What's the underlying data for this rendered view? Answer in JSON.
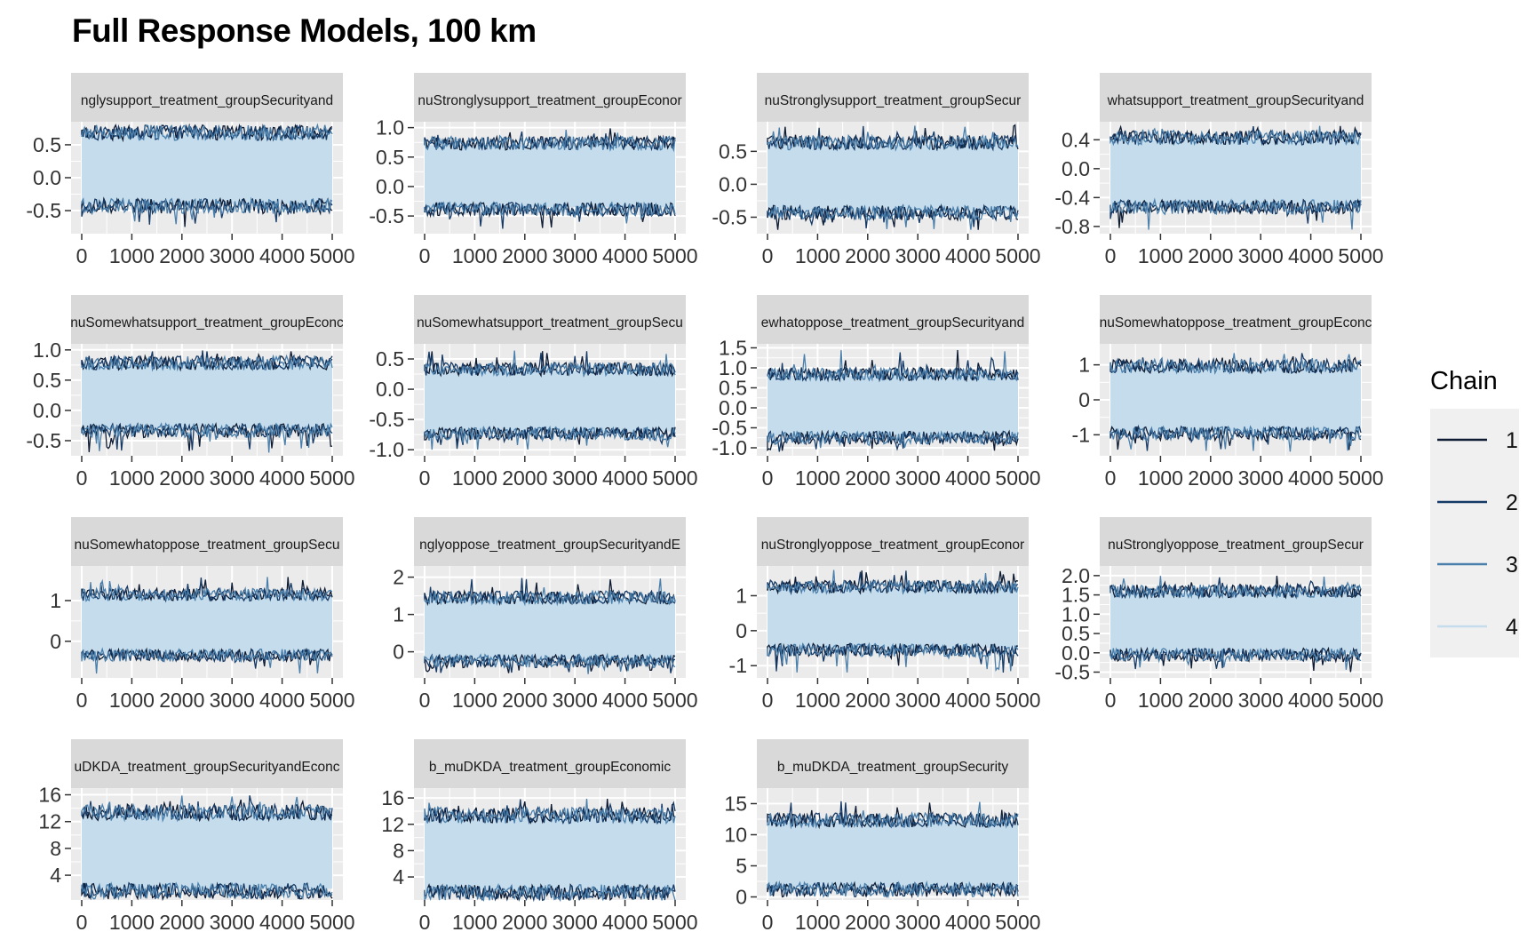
{
  "title": "Full Response Models, 100 km",
  "legend": {
    "title": "Chain",
    "entries": [
      {
        "label": "1",
        "color": "#0d1b33"
      },
      {
        "label": "2",
        "color": "#163a66"
      },
      {
        "label": "3",
        "color": "#4a7fab"
      },
      {
        "label": "4",
        "color": "#c5dcec"
      }
    ]
  },
  "colors": {
    "panel_bg": "#ebebeb",
    "strip_bg": "#d9d9d9",
    "grid": "#ffffff",
    "band_fill": "#c5dcec"
  },
  "chart_data": [
    {
      "type": "line",
      "strip": "nglysupport_treatment_groupSecurityand",
      "x_ticks": [
        "0",
        "1000",
        "2000",
        "3000",
        "4000",
        "5000"
      ],
      "xlim": [
        0,
        5000
      ],
      "y_ticks": [
        "0.5",
        "0.0",
        "-0.5"
      ],
      "y_tick_values": [
        0.5,
        0,
        -0.5
      ],
      "ylim": [
        -0.85,
        0.85
      ],
      "band": [
        -0.4,
        0.65
      ],
      "series_extremes": [
        -0.75,
        0.8
      ]
    },
    {
      "type": "line",
      "strip": "nuStronglysupport_treatment_groupEconor",
      "x_ticks": [
        "0",
        "1000",
        "2000",
        "3000",
        "4000",
        "5000"
      ],
      "xlim": [
        0,
        5000
      ],
      "y_ticks": [
        "1.0",
        "0.5",
        "0.0",
        "-0.5"
      ],
      "y_tick_values": [
        1,
        0.5,
        0,
        -0.5
      ],
      "ylim": [
        -0.8,
        1.1
      ],
      "band": [
        -0.35,
        0.7
      ],
      "series_extremes": [
        -0.75,
        1.0
      ]
    },
    {
      "type": "line",
      "strip": "nuStronglysupport_treatment_groupSecur",
      "x_ticks": [
        "0",
        "1000",
        "2000",
        "3000",
        "4000",
        "5000"
      ],
      "xlim": [
        0,
        5000
      ],
      "y_ticks": [
        "0.5",
        "0.0",
        "-0.5"
      ],
      "y_tick_values": [
        0.5,
        0,
        -0.5
      ],
      "ylim": [
        -0.75,
        0.95
      ],
      "band": [
        -0.4,
        0.6
      ],
      "series_extremes": [
        -0.7,
        0.9
      ]
    },
    {
      "type": "line",
      "strip": "whatsupport_treatment_groupSecurityand",
      "x_ticks": [
        "0",
        "1000",
        "2000",
        "3000",
        "4000",
        "5000"
      ],
      "xlim": [
        0,
        5000
      ],
      "y_ticks": [
        "0.4",
        "0.0",
        "-0.4",
        "-0.8"
      ],
      "y_tick_values": [
        0.4,
        0,
        -0.4,
        -0.8
      ],
      "ylim": [
        -0.9,
        0.65
      ],
      "band": [
        -0.5,
        0.4
      ],
      "series_extremes": [
        -0.85,
        0.6
      ]
    },
    {
      "type": "line",
      "strip": "nuSomewhatsupport_treatment_groupEconc",
      "x_ticks": [
        "0",
        "1000",
        "2000",
        "3000",
        "4000",
        "5000"
      ],
      "xlim": [
        0,
        5000
      ],
      "y_ticks": [
        "1.0",
        "0.5",
        "0.0",
        "-0.5"
      ],
      "y_tick_values": [
        1,
        0.5,
        0,
        -0.5
      ],
      "ylim": [
        -0.75,
        1.1
      ],
      "band": [
        -0.3,
        0.75
      ],
      "series_extremes": [
        -0.7,
        1.0
      ]
    },
    {
      "type": "line",
      "strip": "nuSomewhatsupport_treatment_groupSecu",
      "x_ticks": [
        "0",
        "1000",
        "2000",
        "3000",
        "4000",
        "5000"
      ],
      "xlim": [
        0,
        5000
      ],
      "y_ticks": [
        "0.5",
        "0.0",
        "-0.5",
        "-1.0"
      ],
      "y_tick_values": [
        0.5,
        0,
        -0.5,
        -1
      ],
      "ylim": [
        -1.1,
        0.75
      ],
      "band": [
        -0.7,
        0.3
      ],
      "series_extremes": [
        -1.0,
        0.65
      ]
    },
    {
      "type": "line",
      "strip": "ewhatoppose_treatment_groupSecurityand",
      "x_ticks": [
        "0",
        "1000",
        "2000",
        "3000",
        "4000",
        "5000"
      ],
      "xlim": [
        0,
        5000
      ],
      "y_ticks": [
        "1.5",
        "1.0",
        "0.5",
        "0.0",
        "-0.5",
        "-1.0"
      ],
      "y_tick_values": [
        1.5,
        1,
        0.5,
        0,
        -0.5,
        -1
      ],
      "ylim": [
        -1.2,
        1.6
      ],
      "band": [
        -0.7,
        0.8
      ],
      "series_extremes": [
        -1.1,
        1.45
      ]
    },
    {
      "type": "line",
      "strip": "nuSomewhatoppose_treatment_groupEconc",
      "x_ticks": [
        "0",
        "1000",
        "2000",
        "3000",
        "4000",
        "5000"
      ],
      "xlim": [
        0,
        5000
      ],
      "y_ticks": [
        "1",
        "0",
        "-1"
      ],
      "y_tick_values": [
        1,
        0,
        -1
      ],
      "ylim": [
        -1.6,
        1.6
      ],
      "band": [
        -0.9,
        0.9
      ],
      "series_extremes": [
        -1.5,
        1.35
      ]
    },
    {
      "type": "line",
      "strip": "nuSomewhatoppose_treatment_groupSecu",
      "x_ticks": [
        "0",
        "1000",
        "2000",
        "3000",
        "4000",
        "5000"
      ],
      "xlim": [
        0,
        5000
      ],
      "y_ticks": [
        "1",
        "0"
      ],
      "y_tick_values": [
        1,
        0
      ],
      "ylim": [
        -0.9,
        1.85
      ],
      "band": [
        -0.3,
        1.1
      ],
      "series_extremes": [
        -0.8,
        1.6
      ]
    },
    {
      "type": "line",
      "strip": "nglyoppose_treatment_groupSecurityandE",
      "x_ticks": [
        "0",
        "1000",
        "2000",
        "3000",
        "4000",
        "5000"
      ],
      "xlim": [
        0,
        5000
      ],
      "y_ticks": [
        "2",
        "1",
        "0"
      ],
      "y_tick_values": [
        2,
        1,
        0
      ],
      "ylim": [
        -0.7,
        2.3
      ],
      "band": [
        -0.2,
        1.4
      ],
      "series_extremes": [
        -0.6,
        2.0
      ]
    },
    {
      "type": "line",
      "strip": "nuStronglyoppose_treatment_groupEconor",
      "x_ticks": [
        "0",
        "1000",
        "2000",
        "3000",
        "4000",
        "5000"
      ],
      "xlim": [
        0,
        5000
      ],
      "y_ticks": [
        "1",
        "0",
        "-1"
      ],
      "y_tick_values": [
        1,
        0,
        -1
      ],
      "ylim": [
        -1.35,
        1.85
      ],
      "band": [
        -0.5,
        1.2
      ],
      "series_extremes": [
        -1.2,
        1.75
      ]
    },
    {
      "type": "line",
      "strip": "nuStronglyoppose_treatment_groupSecur",
      "x_ticks": [
        "0",
        "1000",
        "2000",
        "3000",
        "4000",
        "5000"
      ],
      "xlim": [
        0,
        5000
      ],
      "y_ticks": [
        "2.0",
        "1.5",
        "1.0",
        "0.5",
        "0.0",
        "-0.5"
      ],
      "y_tick_values": [
        2,
        1.5,
        1,
        0.5,
        0,
        -0.5
      ],
      "ylim": [
        -0.65,
        2.25
      ],
      "band": [
        0.0,
        1.55
      ],
      "series_extremes": [
        -0.5,
        2.0
      ]
    },
    {
      "type": "line",
      "strip": "uDKDA_treatment_groupSecurityandEconc",
      "x_ticks": [
        "0",
        "1000",
        "2000",
        "3000",
        "4000",
        "5000"
      ],
      "xlim": [
        0,
        5000
      ],
      "y_ticks": [
        "16",
        "12",
        "8",
        "4"
      ],
      "y_tick_values": [
        16,
        12,
        8,
        4
      ],
      "ylim": [
        0.3,
        17
      ],
      "band": [
        2,
        13
      ],
      "series_extremes": [
        1.0,
        16
      ]
    },
    {
      "type": "line",
      "strip": "b_muDKDA_treatment_groupEconomic",
      "x_ticks": [
        "0",
        "1000",
        "2000",
        "3000",
        "4000",
        "5000"
      ],
      "xlim": [
        0,
        5000
      ],
      "y_ticks": [
        "16",
        "12",
        "8",
        "4"
      ],
      "y_tick_values": [
        16,
        12,
        8,
        4
      ],
      "ylim": [
        0.5,
        17.5
      ],
      "band": [
        2,
        13
      ],
      "series_extremes": [
        1.2,
        16
      ]
    },
    {
      "type": "line",
      "strip": "b_muDKDA_treatment_groupSecurity",
      "x_ticks": [
        "0",
        "1000",
        "2000",
        "3000",
        "4000",
        "5000"
      ],
      "xlim": [
        0,
        5000
      ],
      "y_ticks": [
        "15",
        "10",
        "5",
        "0"
      ],
      "y_tick_values": [
        15,
        10,
        5,
        0
      ],
      "ylim": [
        -0.5,
        17.5
      ],
      "band": [
        1.5,
        12
      ],
      "series_extremes": [
        0.5,
        15.5
      ]
    }
  ]
}
